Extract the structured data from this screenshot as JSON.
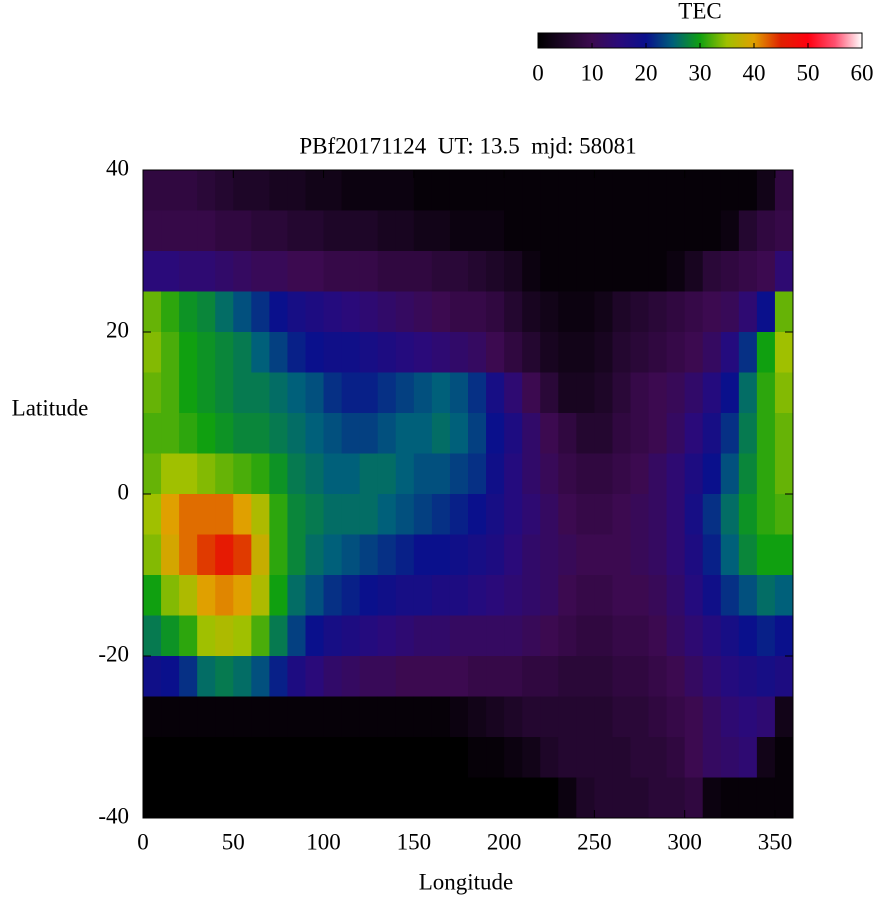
{
  "chart_data": {
    "type": "heatmap",
    "title": "PBf20171124  UT: 13.5  mjd: 58081",
    "xlabel": "Longitude",
    "ylabel": "Latitude",
    "colorbar_label": "TEC",
    "xlim": [
      0,
      360
    ],
    "xticks": [
      0,
      50,
      100,
      150,
      200,
      250,
      300,
      350
    ],
    "ylim": [
      -40,
      40
    ],
    "yticks": [
      -40,
      -20,
      0,
      20,
      40
    ],
    "zlim": [
      0,
      60
    ],
    "zticks": [
      0,
      10,
      20,
      30,
      40,
      50,
      60
    ],
    "colormap": [
      "#000000",
      "#1e0628",
      "#3c0a50",
      "#2a0a7a",
      "#0a108c",
      "#00607a",
      "#10a010",
      "#a0c000",
      "#e0a000",
      "#e02000",
      "#ff0010",
      "#ff5070",
      "#ffffff"
    ],
    "x": [
      5,
      15,
      25,
      35,
      45,
      55,
      65,
      75,
      85,
      95,
      105,
      115,
      125,
      135,
      145,
      155,
      165,
      175,
      185,
      195,
      205,
      215,
      225,
      235,
      245,
      255,
      265,
      275,
      285,
      295,
      305,
      315,
      325,
      335,
      345,
      355
    ],
    "y": [
      37.5,
      32.5,
      27.5,
      22.5,
      17.5,
      12.5,
      7.5,
      2.5,
      -2.5,
      -7.5,
      -12.5,
      -17.5,
      -22.5,
      -27.5,
      -32.5,
      -37.5
    ],
    "z": [
      [
        8,
        8,
        8,
        7,
        6,
        5,
        5,
        4,
        4,
        3,
        3,
        2,
        2,
        2,
        2,
        1,
        1,
        1,
        1,
        1,
        1,
        1,
        1,
        1,
        1,
        1,
        1,
        1,
        1,
        1,
        1,
        1,
        1,
        1,
        3,
        8
      ],
      [
        9,
        9,
        9,
        9,
        8,
        8,
        7,
        7,
        6,
        6,
        5,
        5,
        5,
        4,
        4,
        3,
        3,
        2,
        2,
        2,
        1,
        1,
        1,
        1,
        1,
        1,
        1,
        1,
        1,
        1,
        1,
        1,
        2,
        6,
        8,
        9
      ],
      [
        15,
        15,
        14,
        14,
        13,
        12,
        11,
        11,
        10,
        10,
        9,
        9,
        9,
        8,
        8,
        8,
        7,
        7,
        6,
        5,
        4,
        2,
        1,
        1,
        1,
        1,
        1,
        1,
        1,
        2,
        4,
        7,
        8,
        9,
        10,
        14
      ],
      [
        33,
        31,
        29,
        28,
        26,
        24,
        22,
        20,
        18,
        17,
        16,
        15,
        14,
        13,
        12,
        11,
        10,
        9,
        9,
        8,
        6,
        4,
        3,
        2,
        2,
        3,
        5,
        6,
        7,
        8,
        9,
        10,
        11,
        14,
        20,
        33
      ],
      [
        34,
        32,
        30,
        29,
        28,
        27,
        25,
        23,
        21,
        20,
        19,
        19,
        18,
        17,
        16,
        15,
        14,
        13,
        12,
        10,
        8,
        6,
        4,
        3,
        3,
        4,
        6,
        7,
        8,
        9,
        10,
        12,
        16,
        22,
        30,
        35
      ],
      [
        33,
        32,
        30,
        29,
        28,
        27,
        27,
        26,
        25,
        24,
        22,
        21,
        21,
        22,
        23,
        24,
        25,
        24,
        22,
        18,
        14,
        10,
        7,
        4,
        4,
        5,
        7,
        9,
        10,
        11,
        13,
        16,
        20,
        26,
        31,
        34
      ],
      [
        32,
        32,
        31,
        30,
        29,
        28,
        28,
        27,
        26,
        25,
        24,
        23,
        23,
        24,
        25,
        25,
        26,
        25,
        23,
        20,
        17,
        13,
        10,
        8,
        6,
        6,
        8,
        9,
        10,
        12,
        15,
        18,
        22,
        27,
        31,
        33
      ],
      [
        33,
        35,
        35,
        34,
        33,
        32,
        31,
        29,
        27,
        26,
        25,
        25,
        26,
        26,
        25,
        24,
        24,
        23,
        22,
        19,
        16,
        13,
        11,
        9,
        8,
        8,
        9,
        10,
        12,
        14,
        17,
        20,
        24,
        28,
        31,
        33
      ],
      [
        35,
        40,
        42,
        42,
        42,
        40,
        36,
        31,
        28,
        27,
        26,
        26,
        26,
        25,
        24,
        23,
        22,
        21,
        20,
        18,
        16,
        14,
        12,
        10,
        9,
        9,
        10,
        11,
        12,
        14,
        18,
        22,
        26,
        29,
        31,
        32
      ],
      [
        34,
        39,
        42,
        44,
        46,
        44,
        38,
        31,
        28,
        26,
        25,
        24,
        23,
        22,
        21,
        20,
        20,
        19,
        18,
        17,
        15,
        13,
        12,
        11,
        10,
        10,
        10,
        11,
        12,
        14,
        17,
        21,
        25,
        28,
        30,
        30
      ],
      [
        30,
        34,
        36,
        40,
        41,
        40,
        36,
        30,
        26,
        24,
        22,
        21,
        20,
        19,
        18,
        18,
        17,
        17,
        16,
        15,
        14,
        13,
        12,
        10,
        9,
        9,
        10,
        10,
        11,
        13,
        16,
        19,
        22,
        24,
        26,
        25
      ],
      [
        27,
        29,
        31,
        35,
        36,
        35,
        32,
        27,
        23,
        20,
        18,
        17,
        16,
        15,
        14,
        13,
        13,
        12,
        12,
        12,
        12,
        11,
        10,
        9,
        8,
        8,
        9,
        9,
        10,
        12,
        14,
        16,
        18,
        20,
        21,
        20
      ],
      [
        19,
        20,
        22,
        26,
        27,
        26,
        24,
        21,
        17,
        15,
        13,
        12,
        11,
        11,
        10,
        10,
        10,
        10,
        9,
        9,
        9,
        8,
        8,
        7,
        7,
        7,
        8,
        8,
        9,
        10,
        12,
        14,
        16,
        17,
        18,
        17
      ],
      [
        1,
        1,
        1,
        1,
        1,
        1,
        1,
        1,
        1,
        1,
        1,
        1,
        1,
        1,
        1,
        1,
        1,
        2,
        3,
        4,
        5,
        6,
        6,
        6,
        6,
        6,
        7,
        7,
        8,
        9,
        10,
        12,
        14,
        15,
        14,
        3
      ],
      [
        0,
        0,
        0,
        0,
        0,
        0,
        0,
        0,
        0,
        0,
        0,
        0,
        0,
        0,
        0,
        0,
        0,
        0,
        1,
        1,
        2,
        3,
        5,
        6,
        6,
        6,
        6,
        7,
        7,
        8,
        10,
        12,
        13,
        14,
        3,
        1
      ],
      [
        0,
        0,
        0,
        0,
        0,
        0,
        0,
        0,
        0,
        0,
        0,
        0,
        0,
        0,
        0,
        0,
        0,
        0,
        0,
        0,
        0,
        0,
        0,
        2,
        5,
        6,
        6,
        6,
        7,
        7,
        8,
        2,
        1,
        1,
        1,
        1
      ]
    ]
  }
}
